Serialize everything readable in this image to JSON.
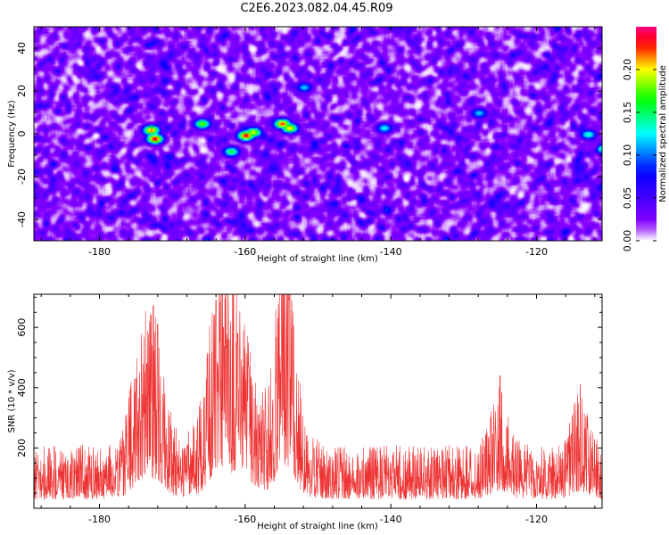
{
  "title": "C2E6.2023.082.04.45.R09",
  "chart_data": [
    {
      "type": "heatmap",
      "xlabel": "Height of straight line (km)",
      "ylabel": "Frequency (Hz)",
      "xlim": [
        -189,
        -111
      ],
      "ylim": [
        -50,
        50
      ],
      "x_ticks": [
        -180,
        -160,
        -140,
        -120
      ],
      "y_ticks": [
        -40,
        -20,
        0,
        20,
        40
      ],
      "colorbar": {
        "label": "Normalized spectral amplitude",
        "range": [
          0,
          0.25
        ],
        "ticks": [
          0.0,
          0.05,
          0.1,
          0.15,
          0.2
        ],
        "tick_labels": [
          "0.00",
          "0.05",
          "0.10",
          "0.15",
          "0.20"
        ],
        "colors": [
          "#ffffff",
          "#8b00ff",
          "#0000ff",
          "#00ffff",
          "#00ff00",
          "#ffff00",
          "#ff0000",
          "#ff0080"
        ]
      },
      "hotspots": [
        {
          "x": -173,
          "y": 2,
          "amp": 0.22
        },
        {
          "x": -172.5,
          "y": -2,
          "amp": 0.24
        },
        {
          "x": -166,
          "y": 5,
          "amp": 0.18
        },
        {
          "x": -162,
          "y": -8,
          "amp": 0.16
        },
        {
          "x": -160,
          "y": -0.5,
          "amp": 0.24
        },
        {
          "x": -159,
          "y": 1,
          "amp": 0.2
        },
        {
          "x": -155,
          "y": 5,
          "amp": 0.23
        },
        {
          "x": -154,
          "y": 3,
          "amp": 0.21
        },
        {
          "x": -152,
          "y": 22,
          "amp": 0.12
        },
        {
          "x": -141,
          "y": 3,
          "amp": 0.13
        },
        {
          "x": -128,
          "y": 10,
          "amp": 0.12
        },
        {
          "x": -113,
          "y": 0,
          "amp": 0.14
        }
      ]
    },
    {
      "type": "line",
      "xlabel": "Height of straight line (km)",
      "ylabel": "SNR (10 * v/v)",
      "xlim": [
        -189,
        -111
      ],
      "ylim": [
        0,
        710
      ],
      "x_ticks": [
        -180,
        -160,
        -140,
        -120
      ],
      "y_ticks": [
        200,
        400,
        600
      ],
      "color": "#ee3333",
      "series": [
        {
          "baseline": 120,
          "peaks": [
            {
              "x": -175,
              "y": 430
            },
            {
              "x": -173.5,
              "y": 480
            },
            {
              "x": -172,
              "y": 610
            },
            {
              "x": -164,
              "y": 690
            },
            {
              "x": -163,
              "y": 600
            },
            {
              "x": -161,
              "y": 580
            },
            {
              "x": -159.5,
              "y": 470
            },
            {
              "x": -155,
              "y": 710
            },
            {
              "x": -154,
              "y": 690
            },
            {
              "x": -125,
              "y": 440
            },
            {
              "x": -114,
              "y": 410
            }
          ]
        }
      ]
    }
  ]
}
